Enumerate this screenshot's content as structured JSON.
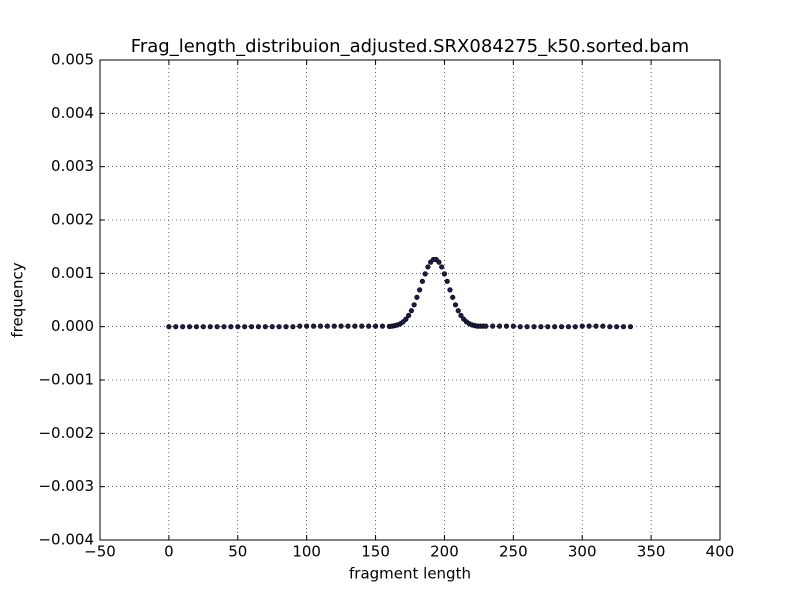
{
  "chart_data": {
    "type": "scatter",
    "title": "Frag_length_distribuion_adjusted.SRX084275_k50.sorted.bam",
    "x_label": "fragment length",
    "y_label": "frequency",
    "color": "#1c1c4a",
    "grid": true,
    "xlim": [
      -50,
      400
    ],
    "xticks": [
      {
        "value": -50,
        "label": "−50"
      },
      0,
      50,
      100,
      150,
      200,
      250,
      300,
      350,
      400
    ],
    "ylim": [
      -0.004,
      0.005
    ],
    "yticks": [
      {
        "value": -0.004,
        "label": "−0.004"
      },
      {
        "value": -0.003,
        "label": "−0.003"
      },
      {
        "value": -0.002,
        "label": "−0.002"
      },
      {
        "value": -0.001,
        "label": "−0.001"
      },
      {
        "value": 0,
        "label": "0.000"
      },
      {
        "value": 0.001,
        "label": "0.001"
      },
      {
        "value": 0.002,
        "label": "0.002"
      },
      {
        "value": 0.003,
        "label": "0.003"
      },
      {
        "value": 0.004,
        "label": "0.004"
      },
      {
        "value": 0.005,
        "label": "0.005"
      }
    ],
    "x": [
      0,
      5,
      10,
      15,
      20,
      25,
      30,
      35,
      40,
      45,
      50,
      55,
      60,
      65,
      70,
      75,
      80,
      85,
      90,
      95,
      100,
      105,
      110,
      115,
      120,
      125,
      130,
      135,
      140,
      145,
      150,
      155,
      160,
      162,
      164,
      166,
      168,
      170,
      172,
      174,
      176,
      178,
      180,
      182,
      184,
      186,
      188,
      190,
      192,
      194,
      196,
      198,
      200,
      202,
      204,
      206,
      208,
      210,
      212,
      214,
      216,
      218,
      220,
      222,
      224,
      226,
      228,
      230,
      235,
      240,
      245,
      250,
      255,
      260,
      265,
      270,
      275,
      280,
      285,
      290,
      295,
      300,
      305,
      310,
      315,
      320,
      325,
      330,
      335
    ],
    "values": [
      0,
      0,
      0,
      0,
      0,
      0,
      0,
      0,
      0,
      0,
      0,
      0,
      0,
      0,
      0,
      0,
      0,
      0,
      0,
      1e-05,
      1e-05,
      1e-05,
      1e-05,
      1e-05,
      1e-05,
      1e-05,
      1e-05,
      1e-05,
      1e-05,
      1e-05,
      1e-05,
      1e-05,
      5e-06,
      1e-05,
      2e-05,
      3.3e-05,
      5.6e-05,
      9e-05,
      0.00014,
      0.00021,
      0.0003,
      0.00041,
      0.00055,
      0.00069,
      0.00085,
      0.00099,
      0.00112,
      0.00121,
      0.00126,
      0.00126,
      0.00121,
      0.00112,
      0.00099,
      0.00085,
      0.00069,
      0.00055,
      0.00041,
      0.0003,
      0.00021,
      0.00014,
      9e-05,
      5.6e-05,
      3.3e-05,
      2e-05,
      1e-05,
      1e-05,
      1e-05,
      1e-05,
      1e-05,
      1e-05,
      1e-05,
      1e-05,
      0,
      0,
      0,
      0,
      0,
      0,
      0,
      0,
      0,
      1e-05,
      1e-05,
      1e-05,
      1e-05,
      0,
      0,
      0,
      0
    ]
  }
}
